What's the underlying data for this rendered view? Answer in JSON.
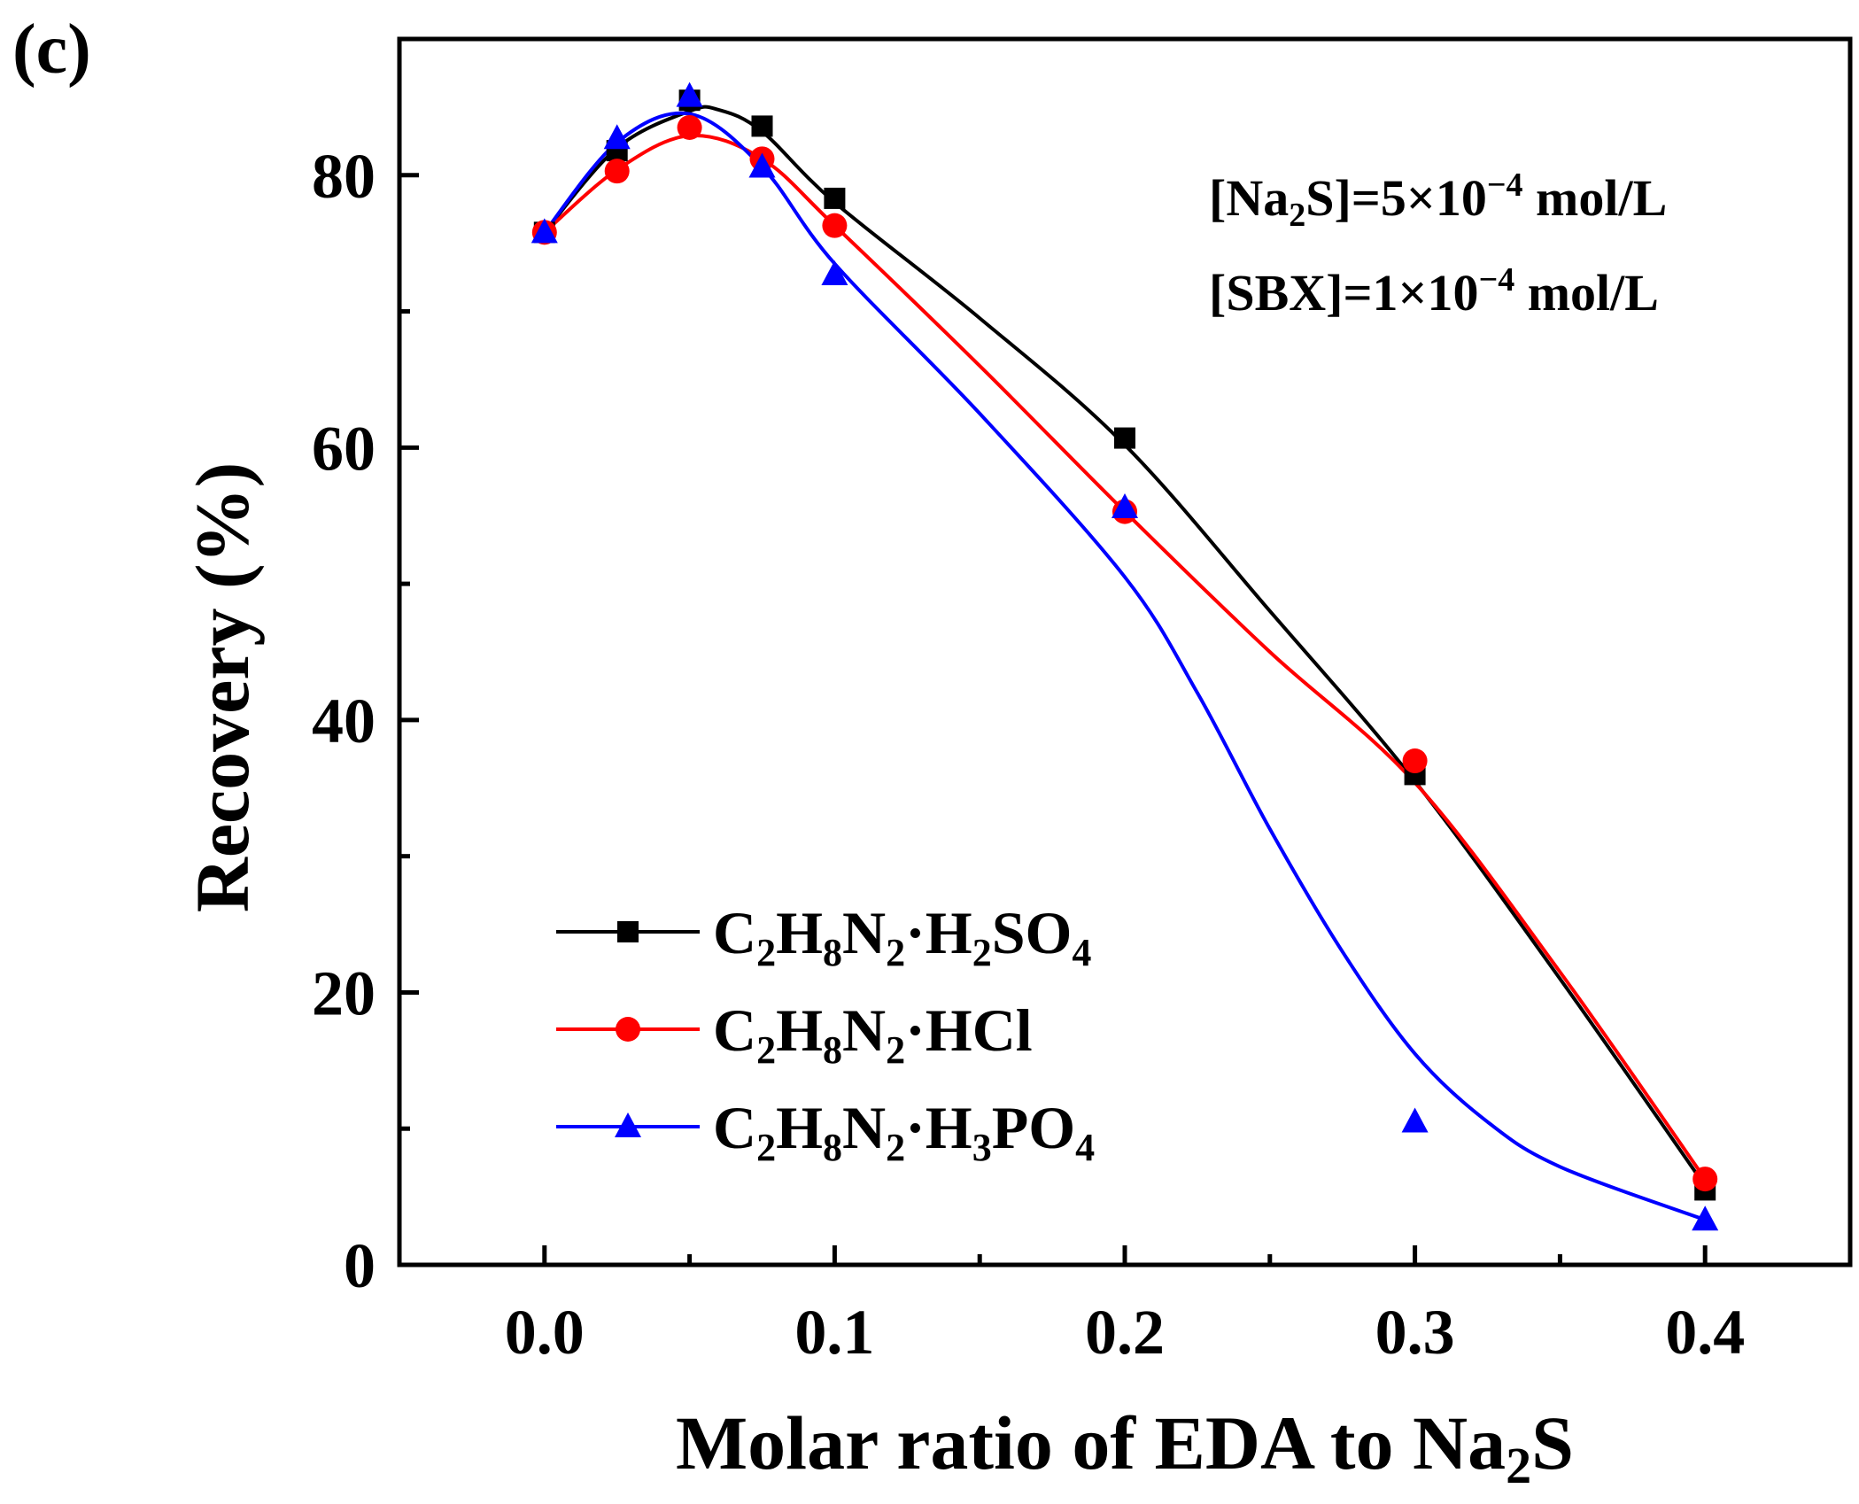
{
  "panel_label": "(c)",
  "chart_data": {
    "type": "line",
    "xlabel_main": "Molar ratio of EDA to Na",
    "xlabel_sub": "2",
    "xlabel_tail": "S",
    "ylabel": "Recovery (%)",
    "xlim": [
      -0.05,
      0.45
    ],
    "ylim": [
      0,
      90
    ],
    "x_ticks": [
      0.0,
      0.1,
      0.2,
      0.3,
      0.4
    ],
    "x_tick_labels": [
      "0.0",
      "0.1",
      "0.2",
      "0.3",
      "0.4"
    ],
    "x_minor_ticks": [
      -0.05,
      0.05,
      0.15,
      0.25,
      0.35,
      0.45
    ],
    "y_ticks": [
      0,
      20,
      40,
      60,
      80
    ],
    "y_tick_labels": [
      "0",
      "20",
      "40",
      "60",
      "80"
    ],
    "y_minor_ticks": [
      10,
      30,
      50,
      70
    ],
    "grid": false,
    "legend_position": "lower-left",
    "annotations": {
      "line1": {
        "a": "[Na",
        "sub": "2",
        "b": "S]=5×10",
        "sup": "−4",
        "c": " mol/L"
      },
      "line2": {
        "a": "[SBX]=1×10",
        "sup": "−4",
        "b": " mol/L"
      }
    },
    "series": [
      {
        "key": "h2so4",
        "name_parts": [
          "C",
          "2",
          "H",
          "8",
          "N",
          "2",
          "·H",
          "2",
          "SO",
          "4"
        ],
        "color": "#000000",
        "marker": "square",
        "x": [
          0.0,
          0.025,
          0.05,
          0.075,
          0.1,
          0.2,
          0.3,
          0.4
        ],
        "y": [
          75.8,
          81.8,
          85.5,
          83.6,
          78.3,
          60.7,
          36.0,
          5.5
        ],
        "fit_x": [
          0.0,
          0.025,
          0.05,
          0.06,
          0.075,
          0.1,
          0.15,
          0.2,
          0.25,
          0.3,
          0.35,
          0.4
        ],
        "fit_y": [
          75.8,
          82.0,
          84.7,
          84.8,
          83.2,
          78.0,
          69.5,
          60.2,
          48.0,
          35.5,
          21.0,
          5.8
        ]
      },
      {
        "key": "hcl",
        "name_parts": [
          "C",
          "2",
          "H",
          "8",
          "N",
          "2",
          "·HCl"
        ],
        "color": "#ff0000",
        "marker": "circle",
        "x": [
          0.0,
          0.025,
          0.05,
          0.075,
          0.1,
          0.2,
          0.3,
          0.4
        ],
        "y": [
          75.8,
          80.3,
          83.5,
          81.2,
          76.3,
          55.3,
          37.0,
          6.3
        ],
        "fit_x": [
          0.0,
          0.025,
          0.05,
          0.075,
          0.1,
          0.15,
          0.2,
          0.25,
          0.3,
          0.35,
          0.4
        ],
        "fit_y": [
          75.8,
          80.4,
          82.9,
          81.2,
          76.3,
          66.0,
          55.3,
          45.0,
          35.4,
          21.5,
          6.3
        ]
      },
      {
        "key": "h3po4",
        "name_parts": [
          "C",
          "2",
          "H",
          "8",
          "N",
          "2",
          "·H",
          "3",
          "PO",
          "4"
        ],
        "color": "#0000ff",
        "marker": "triangle",
        "x": [
          0.0,
          0.025,
          0.05,
          0.075,
          0.1,
          0.2,
          0.3,
          0.4
        ],
        "y": [
          75.8,
          82.7,
          85.8,
          80.6,
          72.7,
          55.6,
          10.5,
          3.3
        ],
        "fit_x": [
          0.0,
          0.025,
          0.05,
          0.075,
          0.1,
          0.15,
          0.2,
          0.225,
          0.25,
          0.275,
          0.3,
          0.325,
          0.35,
          0.4
        ],
        "fit_y": [
          75.8,
          82.4,
          84.5,
          80.6,
          73.5,
          62.5,
          50.5,
          42.0,
          32.0,
          23.0,
          15.5,
          10.5,
          7.2,
          3.3
        ]
      }
    ]
  }
}
